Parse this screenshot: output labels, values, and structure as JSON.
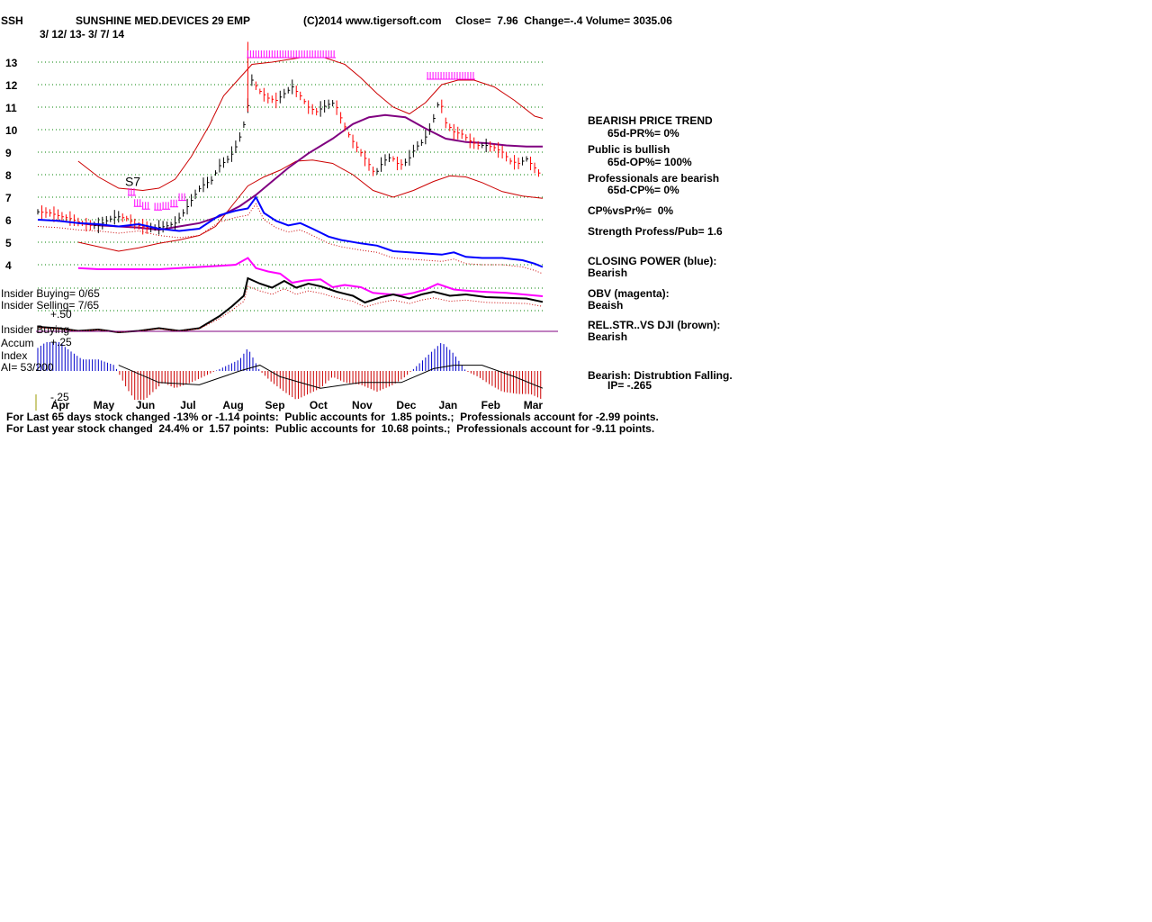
{
  "header": {
    "ticker": "SSH",
    "company": "SUNSHINE MED.DEVICES 29 EMP",
    "copyright": "(C)2014 www.tigersoft.com",
    "quote": "Close=  7.96  Change=-.4 Volume= 3035.06",
    "date_range": "3/ 12/ 13- 3/ 7/ 14"
  },
  "left_labels": {
    "insider_buying_count": "Insider Buying= 0/65",
    "insider_selling_count": "Insider Selling= 7/65",
    "plus_50": "+.50",
    "insider_buying": "Insider Buying",
    "accum": "Accum",
    "index": "Index",
    "ai": "AI= 53/200",
    "plus_25": "+.25",
    "minus_25": "-.25"
  },
  "signal_label": "S7",
  "sidebar": {
    "trend_title": "BEARISH PRICE TREND",
    "pr": "65d-PR%= 0%",
    "public_bullish": "Public is bullish",
    "op": "65d-OP%= 100%",
    "professionals_bearish": "Professionals are bearish",
    "cp": "65d-CP%= 0%",
    "cp_vs_pr": "CP%vsPr%=  0%",
    "strength": "Strength Profess/Pub= 1.6",
    "closing_power_label": "CLOSING POWER (blue):",
    "closing_power_value": "Bearish",
    "obv_label": "OBV (magenta):",
    "obv_value": "Beaish",
    "relstr_label": "REL.STR..VS DJI (brown):",
    "relstr_value": "Bearish",
    "ip_label": "Bearish: Distrubtion Falling.",
    "ip_value": "IP= -.265"
  },
  "footer": {
    "line1": "For Last 65 days stock changed -13% or -1.14 points:  Public accounts for  1.85 points.;  Professionals account for -2.99 points.",
    "line2": "For Last year stock changed  24.4% or  1.57 points:  Public accounts for  10.68 points.;  Professionals account for -9.11 points."
  },
  "colors": {
    "price_up": "#000000",
    "price_down": "#ff0000",
    "bollinger": "#cc0000",
    "ma": "#800080",
    "closing_power": "#0000ff",
    "obv": "#ff00ff",
    "relstr": "#000000",
    "accum_pos": "#0000cc",
    "accum_neg": "#cc0000",
    "grid": "#008000",
    "signal": "#ff00ff"
  },
  "chart_data": {
    "type": "line",
    "title": "SUNSHINE MED.DEVICES 29 EMP",
    "x_tick_labels": [
      "Apr",
      "May",
      "Jun",
      "Jul",
      "Aug",
      "Sep",
      "Oct",
      "Nov",
      "Dec",
      "Jan",
      "Feb",
      "Mar"
    ],
    "y_tick_labels": [
      "13",
      "12",
      "11",
      "10",
      "9",
      "8",
      "7",
      "6",
      "5",
      "4"
    ],
    "ylim": [
      4,
      13
    ],
    "grid": true,
    "x_index_range": [
      0,
      250
    ],
    "month_index": [
      11,
      32,
      53,
      75,
      96,
      117,
      139,
      160,
      182,
      203,
      224,
      245
    ],
    "price_close": [
      [
        0,
        6.35
      ],
      [
        6,
        6.3
      ],
      [
        11,
        6.15
      ],
      [
        16,
        6.05
      ],
      [
        20,
        5.9
      ],
      [
        25,
        5.75
      ],
      [
        30,
        5.75
      ],
      [
        34,
        5.95
      ],
      [
        39,
        6.15
      ],
      [
        44,
        6.05
      ],
      [
        49,
        5.75
      ],
      [
        54,
        5.65
      ],
      [
        59,
        5.65
      ],
      [
        63,
        5.7
      ],
      [
        68,
        5.85
      ],
      [
        72,
        6.3
      ],
      [
        77,
        7.0
      ],
      [
        81,
        7.5
      ],
      [
        86,
        7.75
      ],
      [
        90,
        8.4
      ],
      [
        95,
        8.75
      ],
      [
        99,
        9.4
      ],
      [
        103,
        10.5
      ],
      [
        106,
        12.2
      ],
      [
        110,
        11.7
      ],
      [
        114,
        11.4
      ],
      [
        118,
        11.3
      ],
      [
        122,
        11.6
      ],
      [
        126,
        11.9
      ],
      [
        130,
        11.5
      ],
      [
        134,
        11.0
      ],
      [
        138,
        10.8
      ],
      [
        143,
        11.1
      ],
      [
        147,
        11.2
      ],
      [
        151,
        10.3
      ],
      [
        155,
        9.6
      ],
      [
        159,
        9.1
      ],
      [
        163,
        8.6
      ],
      [
        167,
        8.0
      ],
      [
        171,
        8.6
      ],
      [
        175,
        8.8
      ],
      [
        179,
        8.4
      ],
      [
        183,
        8.6
      ],
      [
        187,
        9.2
      ],
      [
        191,
        9.5
      ],
      [
        195,
        10.2
      ],
      [
        199,
        11.4
      ],
      [
        202,
        10.3
      ],
      [
        206,
        9.9
      ],
      [
        210,
        9.8
      ],
      [
        214,
        9.5
      ],
      [
        218,
        9.3
      ],
      [
        222,
        9.3
      ],
      [
        226,
        9.2
      ],
      [
        230,
        9.0
      ],
      [
        234,
        8.6
      ],
      [
        238,
        8.5
      ],
      [
        242,
        8.7
      ],
      [
        246,
        8.3
      ],
      [
        249,
        7.96
      ]
    ],
    "bollinger_upper": [
      [
        20,
        8.6
      ],
      [
        30,
        7.9
      ],
      [
        40,
        7.4
      ],
      [
        52,
        7.3
      ],
      [
        60,
        7.4
      ],
      [
        68,
        7.8
      ],
      [
        76,
        8.8
      ],
      [
        85,
        10.2
      ],
      [
        92,
        11.5
      ],
      [
        100,
        12.3
      ],
      [
        106,
        12.9
      ],
      [
        116,
        13.0
      ],
      [
        130,
        13.2
      ],
      [
        142,
        13.2
      ],
      [
        152,
        12.9
      ],
      [
        160,
        12.3
      ],
      [
        168,
        11.6
      ],
      [
        176,
        11.0
      ],
      [
        184,
        10.7
      ],
      [
        192,
        11.2
      ],
      [
        200,
        12.0
      ],
      [
        208,
        12.2
      ],
      [
        216,
        12.2
      ],
      [
        226,
        11.9
      ],
      [
        236,
        11.3
      ],
      [
        246,
        10.6
      ],
      [
        250,
        10.5
      ]
    ],
    "bollinger_lower": [
      [
        20,
        5.0
      ],
      [
        30,
        4.8
      ],
      [
        40,
        4.6
      ],
      [
        50,
        4.75
      ],
      [
        60,
        4.95
      ],
      [
        70,
        5.1
      ],
      [
        80,
        5.3
      ],
      [
        88,
        5.7
      ],
      [
        96,
        6.6
      ],
      [
        104,
        7.5
      ],
      [
        112,
        7.9
      ],
      [
        120,
        8.2
      ],
      [
        128,
        8.6
      ],
      [
        136,
        8.65
      ],
      [
        146,
        8.5
      ],
      [
        156,
        8.0
      ],
      [
        166,
        7.3
      ],
      [
        176,
        7.0
      ],
      [
        186,
        7.3
      ],
      [
        196,
        7.7
      ],
      [
        204,
        7.95
      ],
      [
        212,
        7.9
      ],
      [
        220,
        7.65
      ],
      [
        230,
        7.25
      ],
      [
        240,
        7.05
      ],
      [
        250,
        6.95
      ]
    ],
    "moving_average": [
      [
        20,
        5.85
      ],
      [
        30,
        5.75
      ],
      [
        40,
        5.7
      ],
      [
        50,
        5.65
      ],
      [
        60,
        5.55
      ],
      [
        70,
        5.7
      ],
      [
        80,
        5.85
      ],
      [
        90,
        6.15
      ],
      [
        100,
        6.6
      ],
      [
        108,
        7.1
      ],
      [
        116,
        7.7
      ],
      [
        124,
        8.3
      ],
      [
        134,
        8.95
      ],
      [
        146,
        9.6
      ],
      [
        156,
        10.25
      ],
      [
        164,
        10.55
      ],
      [
        172,
        10.65
      ],
      [
        182,
        10.55
      ],
      [
        192,
        10.05
      ],
      [
        202,
        9.6
      ],
      [
        212,
        9.45
      ],
      [
        222,
        9.4
      ],
      [
        232,
        9.3
      ],
      [
        242,
        9.25
      ],
      [
        250,
        9.25
      ]
    ],
    "closing_power": [
      [
        0,
        6.0
      ],
      [
        10,
        5.95
      ],
      [
        20,
        5.85
      ],
      [
        30,
        5.8
      ],
      [
        40,
        5.7
      ],
      [
        50,
        5.8
      ],
      [
        60,
        5.6
      ],
      [
        70,
        5.5
      ],
      [
        80,
        5.6
      ],
      [
        90,
        6.2
      ],
      [
        98,
        6.4
      ],
      [
        104,
        6.5
      ],
      [
        108,
        7.0
      ],
      [
        112,
        6.3
      ],
      [
        118,
        5.95
      ],
      [
        124,
        5.75
      ],
      [
        130,
        5.85
      ],
      [
        136,
        5.6
      ],
      [
        144,
        5.25
      ],
      [
        150,
        5.1
      ],
      [
        160,
        4.95
      ],
      [
        168,
        4.85
      ],
      [
        176,
        4.6
      ],
      [
        184,
        4.55
      ],
      [
        192,
        4.5
      ],
      [
        200,
        4.45
      ],
      [
        206,
        4.55
      ],
      [
        212,
        4.35
      ],
      [
        220,
        4.3
      ],
      [
        230,
        4.3
      ],
      [
        240,
        4.2
      ],
      [
        246,
        4.05
      ],
      [
        250,
        3.9
      ]
    ],
    "obv": [
      [
        20,
        3.85
      ],
      [
        30,
        3.8
      ],
      [
        40,
        3.8
      ],
      [
        50,
        3.8
      ],
      [
        60,
        3.8
      ],
      [
        70,
        3.85
      ],
      [
        80,
        3.9
      ],
      [
        90,
        3.95
      ],
      [
        98,
        4.0
      ],
      [
        104,
        4.3
      ],
      [
        108,
        3.85
      ],
      [
        114,
        3.7
      ],
      [
        120,
        3.6
      ],
      [
        126,
        3.2
      ],
      [
        132,
        3.3
      ],
      [
        140,
        3.35
      ],
      [
        146,
        3.0
      ],
      [
        152,
        3.1
      ],
      [
        160,
        3.0
      ],
      [
        166,
        2.75
      ],
      [
        172,
        2.7
      ],
      [
        180,
        2.65
      ],
      [
        186,
        2.75
      ],
      [
        192,
        2.9
      ],
      [
        198,
        3.15
      ],
      [
        206,
        2.9
      ],
      [
        212,
        2.85
      ],
      [
        220,
        2.8
      ],
      [
        232,
        2.75
      ],
      [
        244,
        2.65
      ],
      [
        250,
        2.6
      ]
    ],
    "relative_strength": [
      [
        0,
        0.4
      ],
      [
        10,
        0.3
      ],
      [
        20,
        0.1
      ],
      [
        30,
        0.2
      ],
      [
        40,
        0.0
      ],
      [
        50,
        0.1
      ],
      [
        60,
        0.3
      ],
      [
        70,
        0.1
      ],
      [
        80,
        0.3
      ],
      [
        90,
        1.2
      ],
      [
        96,
        1.9
      ],
      [
        102,
        2.7
      ],
      [
        104,
        4.0
      ],
      [
        110,
        3.6
      ],
      [
        116,
        3.3
      ],
      [
        122,
        3.8
      ],
      [
        128,
        3.3
      ],
      [
        134,
        3.6
      ],
      [
        140,
        3.4
      ],
      [
        148,
        3.0
      ],
      [
        156,
        2.7
      ],
      [
        162,
        2.2
      ],
      [
        170,
        2.6
      ],
      [
        176,
        2.8
      ],
      [
        184,
        2.5
      ],
      [
        190,
        2.8
      ],
      [
        196,
        3.0
      ],
      [
        204,
        2.7
      ],
      [
        212,
        2.8
      ],
      [
        222,
        2.6
      ],
      [
        232,
        2.55
      ],
      [
        242,
        2.5
      ],
      [
        250,
        2.25
      ]
    ],
    "accum_index": [
      [
        0,
        0.2
      ],
      [
        8,
        0.3
      ],
      [
        14,
        0.2
      ],
      [
        22,
        0.1
      ],
      [
        30,
        0.1
      ],
      [
        38,
        0.05
      ],
      [
        44,
        -0.15
      ],
      [
        50,
        -0.3
      ],
      [
        56,
        -0.2
      ],
      [
        62,
        -0.1
      ],
      [
        68,
        -0.15
      ],
      [
        76,
        -0.1
      ],
      [
        82,
        -0.05
      ],
      [
        88,
        0.0
      ],
      [
        94,
        0.05
      ],
      [
        100,
        0.1
      ],
      [
        104,
        0.2
      ],
      [
        110,
        0.0
      ],
      [
        116,
        -0.1
      ],
      [
        122,
        -0.18
      ],
      [
        128,
        -0.25
      ],
      [
        134,
        -0.2
      ],
      [
        140,
        -0.15
      ],
      [
        146,
        -0.05
      ],
      [
        152,
        -0.1
      ],
      [
        160,
        -0.12
      ],
      [
        168,
        -0.18
      ],
      [
        176,
        -0.12
      ],
      [
        182,
        -0.05
      ],
      [
        188,
        0.05
      ],
      [
        194,
        0.15
      ],
      [
        200,
        0.25
      ],
      [
        206,
        0.15
      ],
      [
        212,
        0.0
      ],
      [
        218,
        -0.05
      ],
      [
        224,
        -0.12
      ],
      [
        230,
        -0.18
      ],
      [
        238,
        -0.2
      ],
      [
        244,
        -0.2
      ],
      [
        250,
        -0.25
      ]
    ],
    "accum_index_ma": [
      [
        40,
        0.05
      ],
      [
        60,
        -0.1
      ],
      [
        80,
        -0.12
      ],
      [
        100,
        0.0
      ],
      [
        110,
        0.05
      ],
      [
        120,
        -0.05
      ],
      [
        140,
        -0.15
      ],
      [
        160,
        -0.1
      ],
      [
        180,
        -0.1
      ],
      [
        196,
        0.02
      ],
      [
        206,
        0.05
      ],
      [
        220,
        0.05
      ],
      [
        236,
        -0.05
      ],
      [
        250,
        -0.15
      ]
    ],
    "accum_ylim": [
      -0.25,
      0.25
    ],
    "signals": [
      {
        "label": "S7",
        "index": [
          45
        ]
      },
      {
        "label": "",
        "index": [
          48,
          52,
          58,
          62,
          66,
          70
        ]
      },
      {
        "label": "",
        "index": [
          104,
          108,
          112,
          116,
          120,
          124,
          128,
          132,
          136,
          140,
          144
        ]
      },
      {
        "label": "",
        "index": [
          193,
          197,
          201,
          205,
          209,
          213
        ]
      }
    ]
  }
}
